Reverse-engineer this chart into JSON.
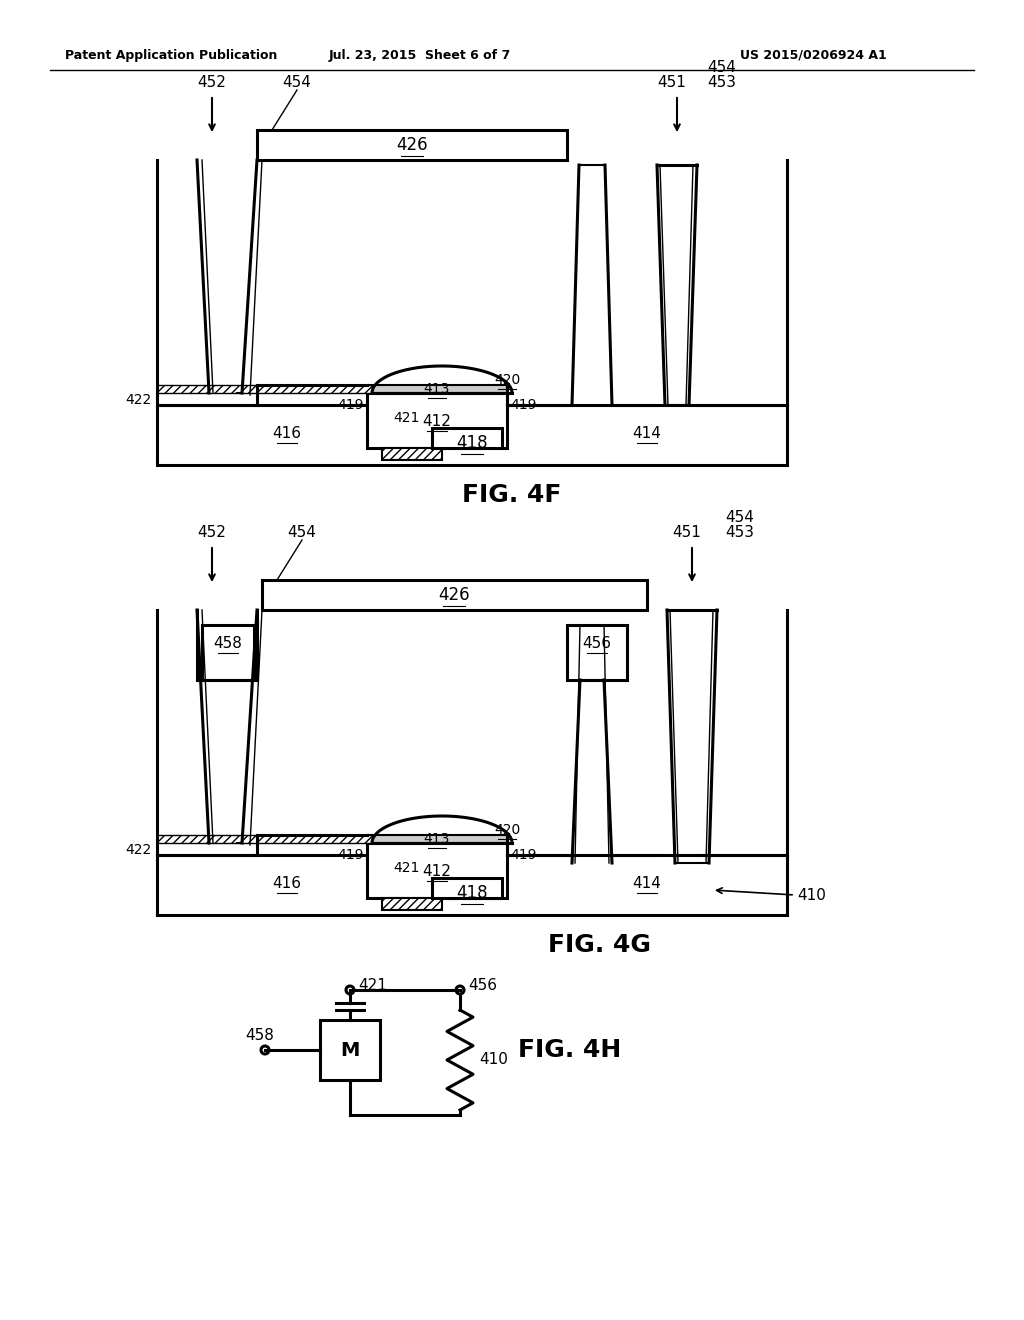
{
  "header_left": "Patent Application Publication",
  "header_center": "Jul. 23, 2015  Sheet 6 of 7",
  "header_right": "US 2015/0206924 A1",
  "fig4f_label": "FIG. 4F",
  "fig4g_label": "FIG. 4G",
  "fig4h_label": "FIG. 4H",
  "bg_color": "#ffffff",
  "line_color": "#000000"
}
